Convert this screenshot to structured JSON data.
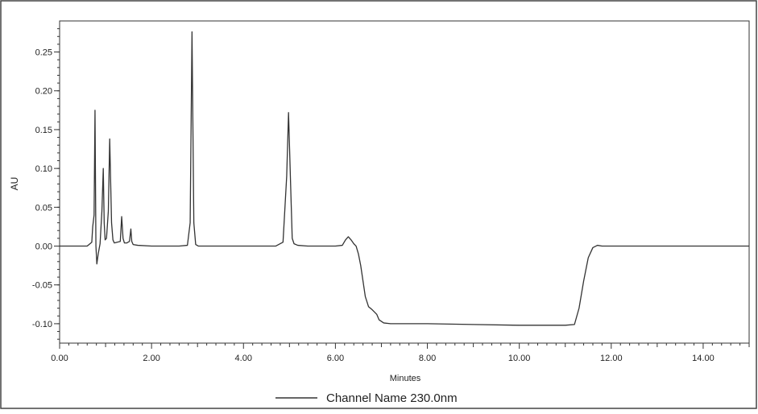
{
  "chart_data": {
    "type": "line",
    "xlabel": "Minutes",
    "ylabel": "AU",
    "xlim": [
      0,
      15
    ],
    "ylim": [
      -0.125,
      0.29
    ],
    "x_ticks": [
      "0.00",
      "2.00",
      "4.00",
      "6.00",
      "8.00",
      "10.00",
      "12.00",
      "14.00"
    ],
    "y_ticks": [
      "-0.10",
      "-0.05",
      "0.00",
      "0.05",
      "0.10",
      "0.15",
      "0.20",
      "0.25"
    ],
    "grid": false,
    "legend_position": "bottom-center",
    "series": [
      {
        "name": "Channel Name 230.0nm",
        "color": "#333333",
        "x": [
          0,
          0.6,
          0.7,
          0.72,
          0.75,
          0.77,
          0.79,
          0.81,
          0.84,
          0.88,
          0.92,
          0.95,
          0.97,
          0.99,
          1.02,
          1.06,
          1.09,
          1.13,
          1.16,
          1.19,
          1.25,
          1.32,
          1.35,
          1.38,
          1.41,
          1.46,
          1.52,
          1.55,
          1.57,
          1.6,
          1.7,
          2.0,
          2.6,
          2.78,
          2.84,
          2.88,
          2.92,
          2.96,
          3.02,
          3.2,
          4.0,
          4.7,
          4.86,
          4.94,
          4.98,
          5.02,
          5.06,
          5.1,
          5.18,
          5.4,
          6.0,
          6.15,
          6.22,
          6.28,
          6.34,
          6.4,
          6.45,
          6.5,
          6.55,
          6.6,
          6.65,
          6.72,
          6.8,
          6.9,
          6.95,
          7.05,
          7.2,
          7.5,
          8.0,
          9.0,
          10.0,
          11.0,
          11.2,
          11.3,
          11.4,
          11.5,
          11.6,
          11.7,
          11.8,
          12.0,
          13.0,
          14.0,
          15.0
        ],
        "y": [
          0,
          0,
          0.005,
          0.025,
          0.04,
          0.175,
          0.0,
          -0.023,
          -0.01,
          0.003,
          0.045,
          0.1,
          0.03,
          0.008,
          0.01,
          0.045,
          0.138,
          0.03,
          0.008,
          0.004,
          0.005,
          0.006,
          0.038,
          0.01,
          0.004,
          0.004,
          0.006,
          0.022,
          0.006,
          0.002,
          0.001,
          0.0,
          0.0,
          0.001,
          0.03,
          0.276,
          0.03,
          0.002,
          0.0,
          0.0,
          0.0,
          0.0,
          0.005,
          0.09,
          0.172,
          0.09,
          0.01,
          0.003,
          0.001,
          0.0,
          0.0,
          0.001,
          0.008,
          0.012,
          0.008,
          0.003,
          0.0,
          -0.01,
          -0.025,
          -0.045,
          -0.065,
          -0.078,
          -0.082,
          -0.088,
          -0.095,
          -0.099,
          -0.1,
          -0.1,
          -0.1,
          -0.101,
          -0.102,
          -0.102,
          -0.101,
          -0.08,
          -0.045,
          -0.015,
          -0.002,
          0.001,
          0.0,
          0.0,
          0.0,
          0.0,
          0.0
        ]
      }
    ]
  }
}
